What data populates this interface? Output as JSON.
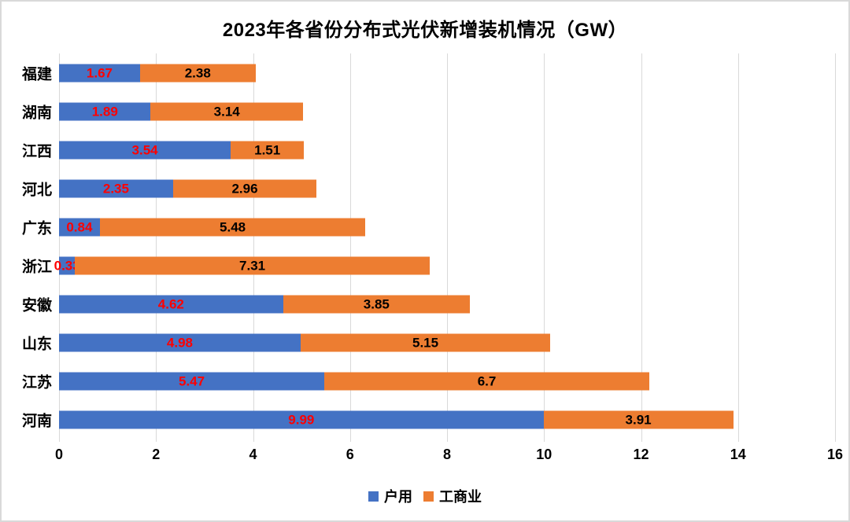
{
  "title": "2023年各省份分布式光伏新增装机情况（GW）",
  "chart_data": {
    "type": "bar",
    "orientation": "horizontal",
    "stacked": true,
    "title": "2023年各省份分布式光伏新增装机情况（GW）",
    "categories": [
      "福建",
      "湖南",
      "江西",
      "河北",
      "广东",
      "浙江",
      "安徽",
      "山东",
      "江苏",
      "河南"
    ],
    "series": [
      {
        "name": "户用",
        "color": "#4472C4",
        "label_color": "#FF0000",
        "values": [
          1.67,
          1.89,
          3.54,
          2.35,
          0.84,
          0.33,
          4.62,
          4.98,
          5.47,
          9.99
        ],
        "value_labels": [
          "1.67",
          "1.89",
          "3.54",
          "2.35",
          "0.84",
          "0.33",
          "4.62",
          "4.98",
          "5.47",
          "9.99"
        ]
      },
      {
        "name": "工商业",
        "color": "#ED7D31",
        "label_color": "#000000",
        "values": [
          2.38,
          3.14,
          1.51,
          2.96,
          5.48,
          7.31,
          3.85,
          5.15,
          6.7,
          3.91
        ],
        "value_labels": [
          "2.38",
          "3.14",
          "1.51",
          "2.96",
          "5.48",
          "7.31",
          "3.85",
          "5.15",
          "6.7",
          "3.91"
        ]
      }
    ],
    "xlim": [
      0,
      16
    ],
    "x_ticks": [
      "0",
      "2",
      "4",
      "6",
      "8",
      "10",
      "12",
      "14",
      "16"
    ],
    "grid": "vertical-gridlines-on",
    "gridline_color": "#D9D9D9",
    "legend_position": "bottom",
    "legend_entries": [
      "户用",
      "工商业"
    ]
  }
}
